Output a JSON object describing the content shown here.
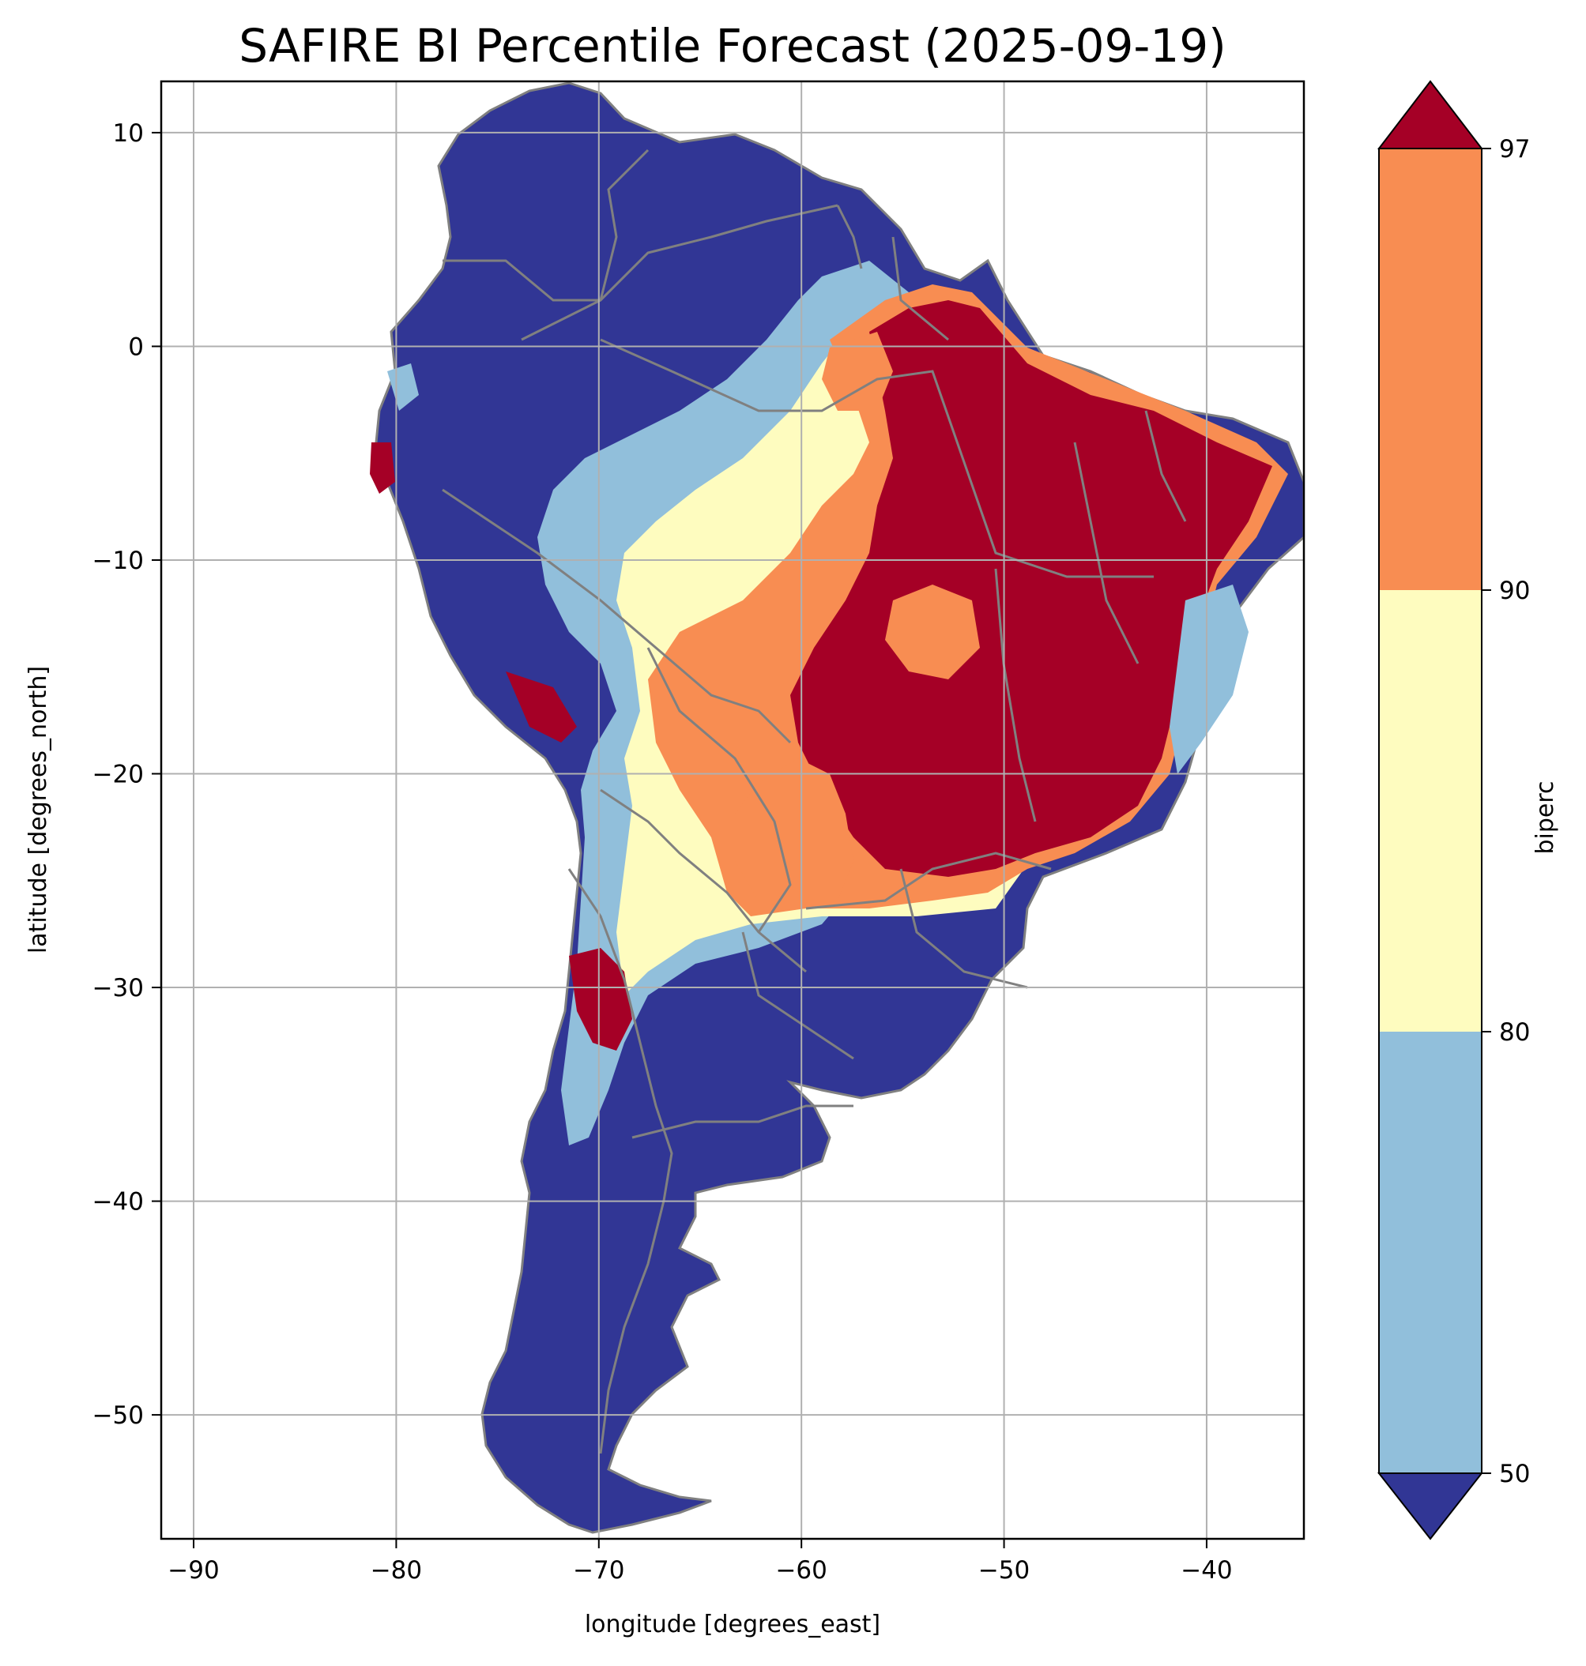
{
  "title": "SAFIRE BI Percentile Forecast (2025-09-19)",
  "map": {
    "region": "South America",
    "xlabel": "longitude [degrees_east]",
    "ylabel": "latitude [degrees_north]",
    "xlim": [
      -91.6,
      -35.2
    ],
    "ylim": [
      -55.8,
      12.4
    ],
    "xticks": [
      -90,
      -80,
      -70,
      -60,
      -50,
      -40
    ],
    "yticks": [
      10,
      0,
      -10,
      -20,
      -30,
      -40,
      -50
    ],
    "xtick_labels": [
      "−90",
      "−80",
      "−70",
      "−60",
      "−50",
      "−40"
    ],
    "ytick_labels": [
      "10",
      "0",
      "−10",
      "−20",
      "−30",
      "−40",
      "−50"
    ],
    "grid": true,
    "border_color": "#808080",
    "grid_color": "#b0b0b0"
  },
  "colorbar": {
    "label": "biperc",
    "tick_labels": [
      "97",
      "90",
      "80",
      "50"
    ],
    "bins": [
      {
        "range": "below 50",
        "color": "#313695"
      },
      {
        "range": "50–80",
        "color": "#91bfdb"
      },
      {
        "range": "80–90",
        "color": "#fefcbf"
      },
      {
        "range": "90–97",
        "color": "#f88d52"
      },
      {
        "range": "above 97",
        "color": "#a50026"
      }
    ]
  }
}
